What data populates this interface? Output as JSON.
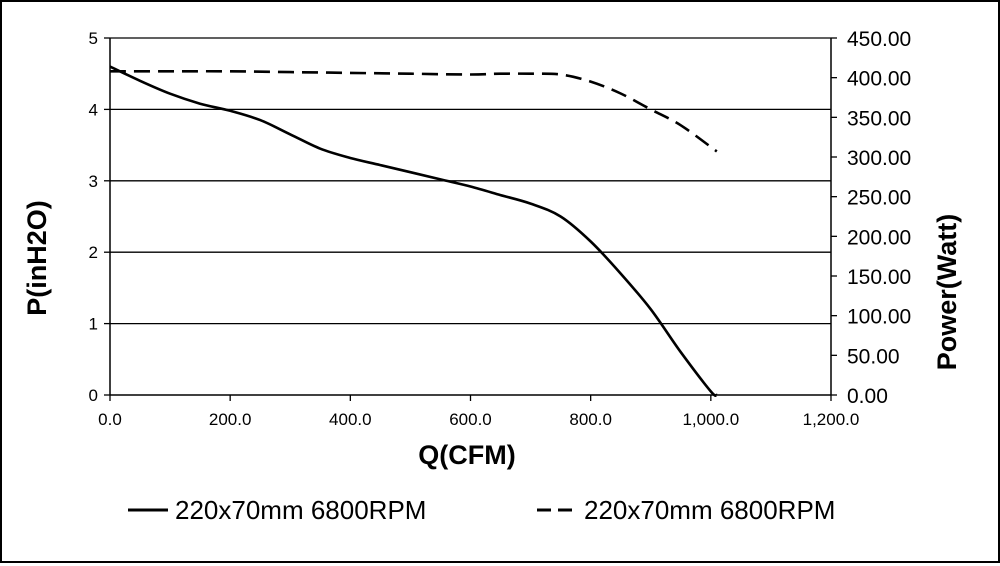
{
  "chart_data": {
    "type": "line",
    "title": "",
    "xlabel": "Q(CFM)",
    "ylabel": "P(inH2O)",
    "y2label": "Power(Watt)",
    "xlim": [
      0,
      1200
    ],
    "ylim": [
      0,
      5
    ],
    "y2lim": [
      0,
      450
    ],
    "grid": "horizontal",
    "legend_position": "bottom",
    "x_ticks": [
      "0.0",
      "200.0",
      "400.0",
      "600.0",
      "800.0",
      "1,000.0",
      "1,200.0"
    ],
    "y_ticks": [
      "0",
      "1",
      "2",
      "3",
      "4",
      "5"
    ],
    "y2_ticks": [
      "0.00",
      "50.00",
      "100.00",
      "150.00",
      "200.00",
      "250.00",
      "300.00",
      "350.00",
      "400.00",
      "450.00"
    ],
    "series": [
      {
        "name": "220x70mm 6800RPM",
        "axis": "left",
        "line_style": "solid",
        "color": "#000000",
        "x": [
          0,
          50,
          100,
          150,
          200,
          250,
          300,
          350,
          400,
          450,
          500,
          550,
          600,
          650,
          700,
          750,
          800,
          850,
          900,
          950,
          1000,
          1010
        ],
        "y": [
          4.6,
          4.4,
          4.22,
          4.08,
          3.98,
          3.85,
          3.65,
          3.45,
          3.32,
          3.22,
          3.12,
          3.02,
          2.92,
          2.8,
          2.68,
          2.5,
          2.15,
          1.7,
          1.2,
          0.6,
          0.05,
          0
        ]
      },
      {
        "name": "220x70mm 6800RPM",
        "axis": "right",
        "line_style": "dashed",
        "color": "#000000",
        "x": [
          0,
          100,
          200,
          300,
          400,
          500,
          600,
          650,
          700,
          750,
          800,
          850,
          900,
          950,
          1010
        ],
        "y": [
          408,
          408,
          408,
          407,
          406,
          405,
          404,
          405,
          405,
          404,
          395,
          380,
          360,
          340,
          307
        ]
      }
    ]
  }
}
